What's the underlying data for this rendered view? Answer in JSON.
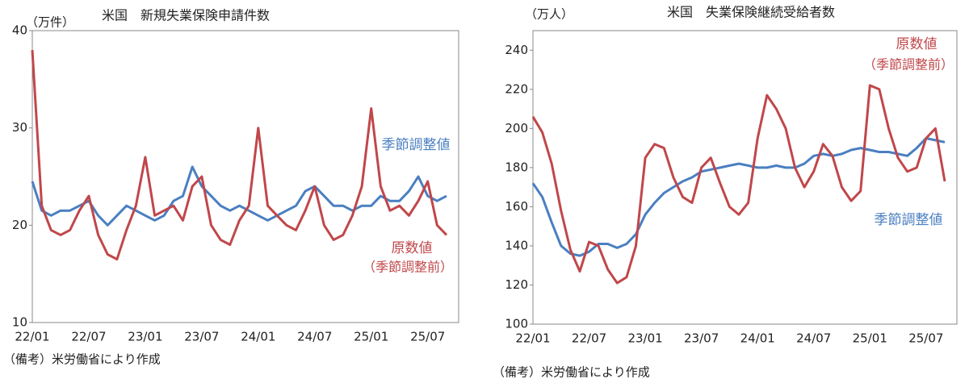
{
  "chart_data": [
    {
      "type": "line",
      "title": "米国　新規失業保険申請件数",
      "y_label": "（万件）",
      "categories": [
        "22/01",
        null,
        null,
        null,
        null,
        null,
        "22/07",
        null,
        null,
        null,
        null,
        null,
        "23/01",
        null,
        null,
        null,
        null,
        null,
        "23/07",
        null,
        null,
        null,
        null,
        null,
        "24/01",
        null,
        null,
        null,
        null,
        null,
        "24/07",
        null,
        null,
        null,
        null,
        null,
        "25/01",
        null,
        null,
        null,
        null,
        null,
        "25/07",
        null,
        null
      ],
      "series": [
        {
          "name": "季節調整値",
          "color": "#4a7fc1",
          "values": [
            24.5,
            21.5,
            21,
            21.5,
            21.5,
            22,
            22.5,
            21,
            20,
            21,
            22,
            21.5,
            21,
            20.5,
            21,
            22.5,
            23,
            26,
            24,
            23,
            22,
            21.5,
            22,
            21.5,
            21,
            20.5,
            21,
            21.5,
            22,
            23.5,
            24,
            23,
            22,
            22,
            21.5,
            22,
            22,
            23,
            22.5,
            22.5,
            23.5,
            25,
            23,
            22.5,
            23
          ]
        },
        {
          "name": "原数値",
          "color": "#c0474a",
          "values": [
            38,
            22,
            19.5,
            19,
            19.5,
            21.5,
            23,
            19,
            17,
            16.5,
            19.5,
            22,
            27,
            21,
            21.5,
            22,
            20.5,
            24,
            25,
            20,
            18.5,
            18,
            20.5,
            22,
            30,
            22,
            21,
            20,
            19.5,
            21.5,
            24,
            20,
            18.5,
            19,
            21,
            24,
            32,
            24,
            21.5,
            22,
            21,
            22.5,
            24.5,
            20,
            19
          ]
        }
      ],
      "annotation": "（季節調整前）",
      "ylim": [
        10,
        40
      ],
      "yticks": [
        10,
        20,
        30,
        40
      ],
      "note": "（備考）米労働省により作成"
    },
    {
      "type": "line",
      "title": "米国　失業保険継続受給者数",
      "y_label": "（万人）",
      "categories": [
        "22/01",
        null,
        null,
        null,
        null,
        null,
        "22/07",
        null,
        null,
        null,
        null,
        null,
        "23/01",
        null,
        null,
        null,
        null,
        null,
        "23/07",
        null,
        null,
        null,
        null,
        null,
        "24/01",
        null,
        null,
        null,
        null,
        null,
        "24/07",
        null,
        null,
        null,
        null,
        null,
        "25/01",
        null,
        null,
        null,
        null,
        null,
        "25/07",
        null,
        null
      ],
      "series": [
        {
          "name": "季節調整値",
          "color": "#4a7fc1",
          "values": [
            172,
            165,
            152,
            140,
            136,
            135,
            137,
            141,
            141,
            139,
            141,
            146,
            156,
            162,
            167,
            170,
            173,
            175,
            178,
            179,
            180,
            181,
            182,
            181,
            180,
            180,
            181,
            180,
            180,
            182,
            186,
            187,
            186,
            187,
            189,
            190,
            189,
            188,
            188,
            187,
            186,
            190,
            195,
            194,
            193
          ]
        },
        {
          "name": "原数値",
          "color": "#c0474a",
          "values": [
            206,
            198,
            182,
            158,
            138,
            127,
            142,
            140,
            128,
            121,
            124,
            140,
            185,
            192,
            190,
            175,
            165,
            162,
            180,
            185,
            172,
            160,
            156,
            162,
            195,
            217,
            210,
            200,
            180,
            170,
            178,
            192,
            186,
            170,
            163,
            168,
            222,
            220,
            200,
            185,
            178,
            180,
            195,
            200,
            173
          ]
        }
      ],
      "annotation": "（季節調整前）",
      "ylim": [
        100,
        250
      ],
      "yticks": [
        100,
        120,
        140,
        160,
        180,
        200,
        220,
        240
      ],
      "note": "（備考）米労働省により作成"
    }
  ]
}
